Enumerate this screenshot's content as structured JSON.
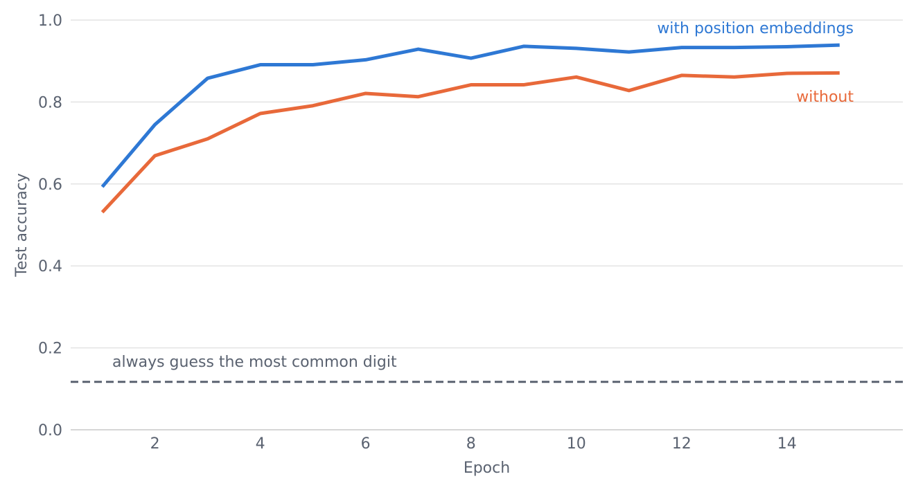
{
  "colors": {
    "with": "#2e78d4",
    "without": "#e8693a",
    "baseline": "#5a6270",
    "grid": "#e3e3e3",
    "axis": "#c8c8c8",
    "text": "#5a6270"
  },
  "chart_data": {
    "type": "line",
    "title": "",
    "xlabel": "Epoch",
    "ylabel": "Test accuracy",
    "xlim": [
      0.4,
      16.2
    ],
    "ylim": [
      0.0,
      1.0
    ],
    "xticks": [
      2,
      4,
      6,
      8,
      10,
      12,
      14
    ],
    "yticks": [
      0.0,
      0.2,
      0.4,
      0.6,
      0.8,
      1.0
    ],
    "xtick_labels": [
      "2",
      "4",
      "6",
      "8",
      "10",
      "12",
      "14"
    ],
    "ytick_labels": [
      "0.0",
      "0.2",
      "0.4",
      "0.6",
      "0.8",
      "1.0"
    ],
    "grid": "horizontal",
    "x": [
      1,
      2,
      3,
      4,
      5,
      6,
      7,
      8,
      9,
      10,
      11,
      12,
      13,
      14,
      15
    ],
    "series": [
      {
        "name": "with position embeddings",
        "color_key": "with",
        "values": [
          0.593,
          0.745,
          0.858,
          0.891,
          0.891,
          0.903,
          0.929,
          0.907,
          0.936,
          0.931,
          0.922,
          0.933,
          0.933,
          0.935,
          0.939
        ]
      },
      {
        "name": "without",
        "color_key": "without",
        "values": [
          0.531,
          0.669,
          0.71,
          0.772,
          0.791,
          0.821,
          0.813,
          0.842,
          0.842,
          0.861,
          0.828,
          0.865,
          0.861,
          0.87,
          0.871
        ]
      }
    ],
    "baseline": {
      "label": "always guess the most common digit",
      "y": 0.117
    }
  }
}
